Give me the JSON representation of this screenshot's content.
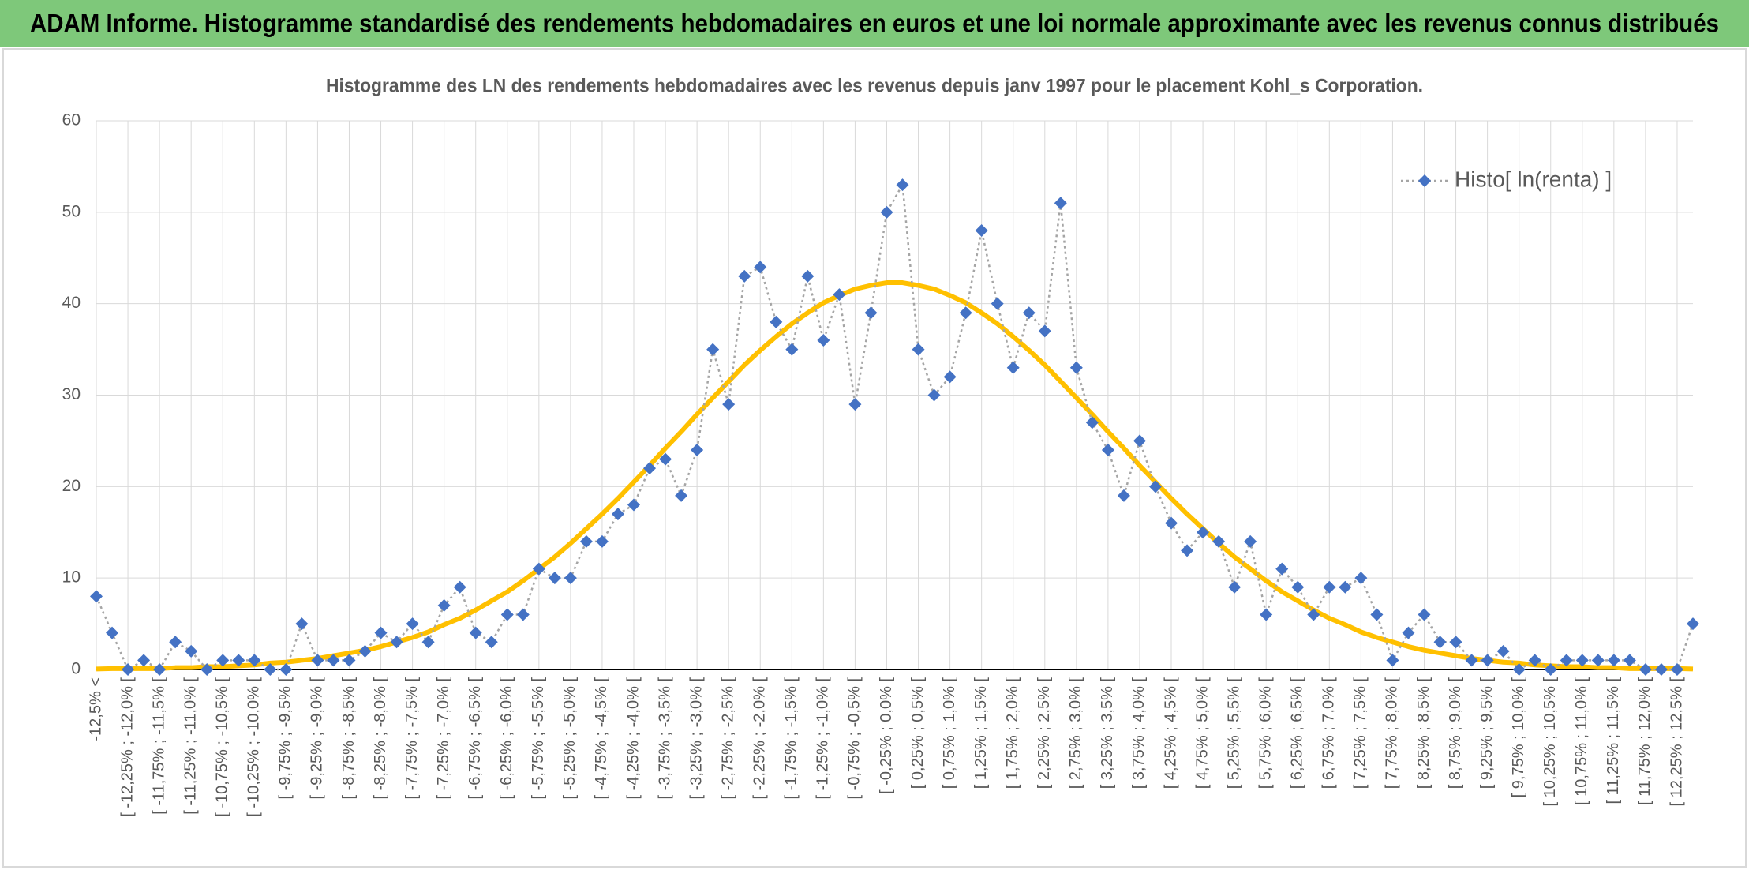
{
  "header": {
    "title": "ADAM Informe. Histogramme standardisé des rendements hebdomadaires en euros et une loi normale approximante avec les revenus connus distribués"
  },
  "chart_data": {
    "type": "line",
    "title": "Histogramme des LN des rendements hebdomadaires avec les revenus depuis janv 1997 pour le placement Kohl_s Corporation.",
    "categories": [
      "-12,5% <",
      null,
      "[ -12,25% ; -12,0% [",
      null,
      "[ -11,75% ; -11,5% [",
      null,
      "[ -11,25% ; -11,0% [",
      null,
      "[ -10,75% ; -10,5% [",
      null,
      "[ -10,25% ; -10,0% [",
      null,
      "[ -9,75% ; -9,5% [",
      null,
      "[ -9,25% ; -9,0% [",
      null,
      "[ -8,75% ; -8,5% [",
      null,
      "[ -8,25% ; -8,0% [",
      null,
      "[ -7,75% ; -7,5% [",
      null,
      "[ -7,25% ; -7,0% [",
      null,
      "[ -6,75% ; -6,5% [",
      null,
      "[ -6,25% ; -6,0% [",
      null,
      "[ -5,75% ; -5,5% [",
      null,
      "[ -5,25% ; -5,0% [",
      null,
      "[ -4,75% ; -4,5% [",
      null,
      "[ -4,25% ; -4,0% [",
      null,
      "[ -3,75% ; -3,5% [",
      null,
      "[ -3,25% ; -3,0% [",
      null,
      "[ -2,75% ; -2,5% [",
      null,
      "[ -2,25% ; -2,0% [",
      null,
      "[ -1,75% ; -1,5% [",
      null,
      "[ -1,25% ; -1,0% [",
      null,
      "[ -0,75% ; -0,5% [",
      null,
      "[ -0,25% ; 0,0% [",
      null,
      "[ 0,25% ; 0,5% [",
      null,
      "[ 0,75% ; 1,0% [",
      null,
      "[ 1,25% ; 1,5% [",
      null,
      "[ 1,75% ; 2,0% [",
      null,
      "[ 2,25% ; 2,5% [",
      null,
      "[ 2,75% ; 3,0% [",
      null,
      "[ 3,25% ; 3,5% [",
      null,
      "[ 3,75% ; 4,0% [",
      null,
      "[ 4,25% ; 4,5% [",
      null,
      "[ 4,75% ; 5,0% [",
      null,
      "[ 5,25% ; 5,5% [",
      null,
      "[ 5,75% ; 6,0% [",
      null,
      "[ 6,25% ; 6,5% [",
      null,
      "[ 6,75% ; 7,0% [",
      null,
      "[ 7,25% ; 7,5% [",
      null,
      "[ 7,75% ; 8,0% [",
      null,
      "[ 8,25% ; 8,5% [",
      null,
      "[ 8,75% ; 9,0% [",
      null,
      "[ 9,25% ; 9,5% [",
      null,
      "[ 9,75% ; 10,0% [",
      null,
      "[ 10,25% ; 10,5% [",
      null,
      "[ 10,75% ; 11,0% [",
      null,
      "[ 11,25% ; 11,5% [",
      null,
      "[ 11,75% ; 12,0% [",
      null,
      "[ 12,25% ; 12,5% [",
      null
    ],
    "series": [
      {
        "name": "Histo[ ln(renta) ]",
        "color": "#4472c4",
        "line_color": "#a5a5a5",
        "line_style": "dotted",
        "marker": "diamond",
        "values": [
          8,
          4,
          0,
          1,
          0,
          3,
          2,
          0,
          1,
          1,
          1,
          0,
          0,
          5,
          1,
          1,
          1,
          2,
          4,
          3,
          5,
          3,
          7,
          9,
          4,
          3,
          6,
          6,
          11,
          10,
          10,
          14,
          14,
          17,
          18,
          22,
          23,
          19,
          24,
          35,
          29,
          43,
          44,
          38,
          35,
          43,
          36,
          41,
          29,
          39,
          50,
          53,
          35,
          30,
          32,
          39,
          48,
          40,
          33,
          39,
          37,
          51,
          33,
          27,
          24,
          19,
          25,
          20,
          16,
          13,
          15,
          14,
          9,
          14,
          6,
          11,
          9,
          6,
          9,
          9,
          10,
          6,
          1,
          4,
          6,
          3,
          3,
          1,
          1,
          2,
          0,
          1,
          0,
          1,
          1,
          1,
          1,
          1,
          0,
          0,
          0,
          5
        ]
      },
      {
        "color": "#ffc000",
        "line_style": "solid",
        "values": [
          0.05,
          0.1,
          0.1,
          0.1,
          0.1,
          0.2,
          0.2,
          0.3,
          0.3,
          0.4,
          0.5,
          0.7,
          0.8,
          1.0,
          1.2,
          1.5,
          1.8,
          2.1,
          2.5,
          3.0,
          3.5,
          4.1,
          4.9,
          5.6,
          6.5,
          7.5,
          8.5,
          9.7,
          11.0,
          12.3,
          13.8,
          15.4,
          17.0,
          18.7,
          20.5,
          22.3,
          24.2,
          26.0,
          27.9,
          29.7,
          31.5,
          33.3,
          34.9,
          36.4,
          37.8,
          39.0,
          40.1,
          40.9,
          41.6,
          42.0,
          42.3,
          42.3,
          42.0,
          41.6,
          40.9,
          40.1,
          39.0,
          37.8,
          36.4,
          34.9,
          33.3,
          31.5,
          29.7,
          27.9,
          26.0,
          24.2,
          22.3,
          20.5,
          18.7,
          17.0,
          15.4,
          13.8,
          12.3,
          11.0,
          9.7,
          8.5,
          7.5,
          6.5,
          5.6,
          4.9,
          4.1,
          3.5,
          3.0,
          2.5,
          2.1,
          1.8,
          1.5,
          1.2,
          1.0,
          0.8,
          0.7,
          0.5,
          0.4,
          0.3,
          0.3,
          0.2,
          0.2,
          0.1,
          0.1,
          0.1,
          0.1,
          0.05
        ]
      }
    ],
    "ylim": [
      0,
      60
    ],
    "yticks": [
      0,
      10,
      20,
      30,
      40,
      50,
      60
    ],
    "grid": true,
    "legend": "top-right"
  }
}
